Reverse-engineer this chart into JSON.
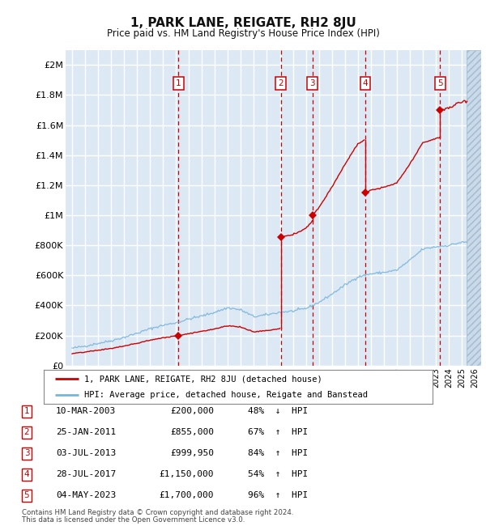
{
  "title": "1, PARK LANE, REIGATE, RH2 8JU",
  "subtitle": "Price paid vs. HM Land Registry's House Price Index (HPI)",
  "footer1": "Contains HM Land Registry data © Crown copyright and database right 2024.",
  "footer2": "This data is licensed under the Open Government Licence v3.0.",
  "legend_label1": "1, PARK LANE, REIGATE, RH2 8JU (detached house)",
  "legend_label2": "HPI: Average price, detached house, Reigate and Banstead",
  "sales": [
    {
      "num": 1,
      "date": "10-MAR-2003",
      "price": 200000,
      "pct": "48%",
      "dir": "↓"
    },
    {
      "num": 2,
      "date": "25-JAN-2011",
      "price": 855000,
      "pct": "67%",
      "dir": "↑"
    },
    {
      "num": 3,
      "date": "03-JUL-2013",
      "price": 999950,
      "pct": "84%",
      "dir": "↑"
    },
    {
      "num": 4,
      "date": "28-JUL-2017",
      "price": 1150000,
      "pct": "54%",
      "dir": "↑"
    },
    {
      "num": 5,
      "date": "04-MAY-2023",
      "price": 1700000,
      "pct": "96%",
      "dir": "↑"
    }
  ],
  "sale_x": [
    2003.19,
    2011.07,
    2013.5,
    2017.57,
    2023.34
  ],
  "hpi_color": "#7ab4d8",
  "price_color": "#cc0000",
  "vline_color": "#cc0000",
  "box_color": "#cc0000",
  "bg_color": "#dce9f5",
  "grid_color": "#ffffff",
  "ylim_max": 2100000,
  "yticks": [
    0,
    200000,
    400000,
    600000,
    800000,
    1000000,
    1200000,
    1400000,
    1600000,
    1800000,
    2000000
  ],
  "ytick_labels": [
    "£0",
    "£200K",
    "£400K",
    "£600K",
    "£800K",
    "£1M",
    "£1.2M",
    "£1.4M",
    "£1.6M",
    "£1.8M",
    "£2M"
  ],
  "xlim_min": 1994.5,
  "xlim_max": 2026.5,
  "hpi_knots_x": [
    1995,
    1996,
    1997,
    1998,
    1999,
    2000,
    2001,
    2002,
    2003,
    2004,
    2005,
    2006,
    2007,
    2008,
    2009,
    2010,
    2011,
    2012,
    2013,
    2014,
    2015,
    2016,
    2017,
    2018,
    2019,
    2020,
    2021,
    2022,
    2023,
    2024,
    2025
  ],
  "hpi_knots_y": [
    115000,
    130000,
    148000,
    165000,
    188000,
    215000,
    245000,
    268000,
    285000,
    310000,
    330000,
    355000,
    385000,
    370000,
    325000,
    338000,
    355000,
    362000,
    380000,
    420000,
    475000,
    535000,
    590000,
    610000,
    620000,
    635000,
    700000,
    775000,
    790000,
    800000,
    820000
  ]
}
